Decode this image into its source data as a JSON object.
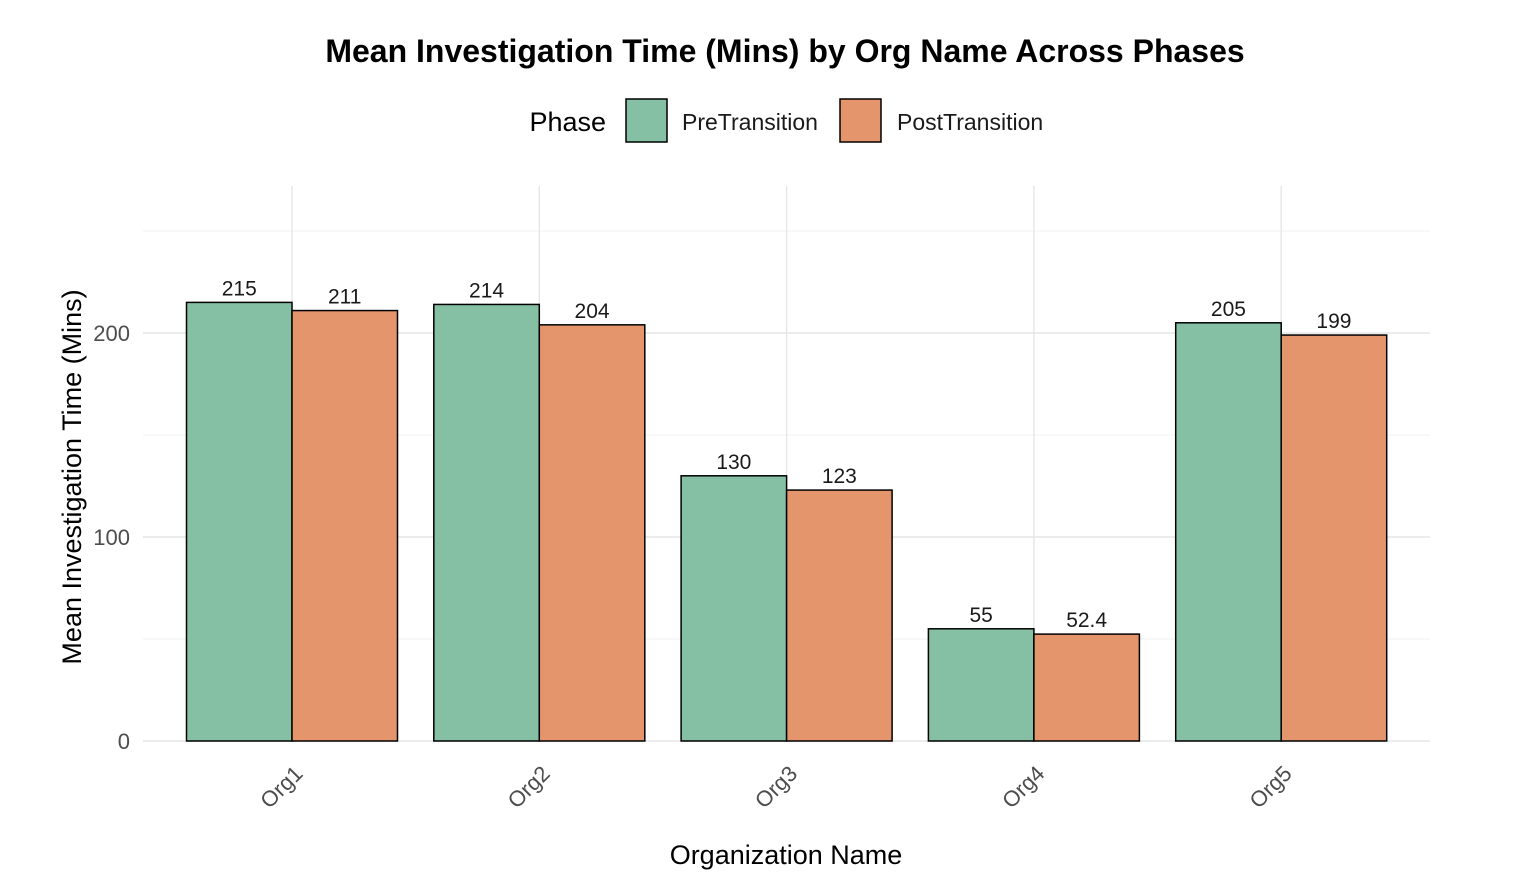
{
  "chart_data": {
    "type": "bar",
    "title": "Mean Investigation Time (Mins) by Org Name Across Phases",
    "xlabel": "Organization Name",
    "ylabel": "Mean Investigation Time (Mins)",
    "categories": [
      "Org1",
      "Org2",
      "Org3",
      "Org4",
      "Org5"
    ],
    "legend": {
      "title": "Phase",
      "position": "top"
    },
    "series": [
      {
        "name": "PreTransition",
        "color": "#85c0a5",
        "values": [
          215,
          214,
          130,
          55,
          205
        ],
        "labels": [
          "215",
          "214",
          "130",
          "55",
          "205"
        ]
      },
      {
        "name": "PostTransition",
        "color": "#e5956b",
        "values": [
          211,
          204,
          123,
          52.4,
          199
        ],
        "labels": [
          "211",
          "204",
          "123",
          "52.4",
          "199"
        ]
      }
    ],
    "yticks": [
      "0",
      "100",
      "200"
    ],
    "ylim": [
      0,
      250
    ],
    "grid": true
  }
}
